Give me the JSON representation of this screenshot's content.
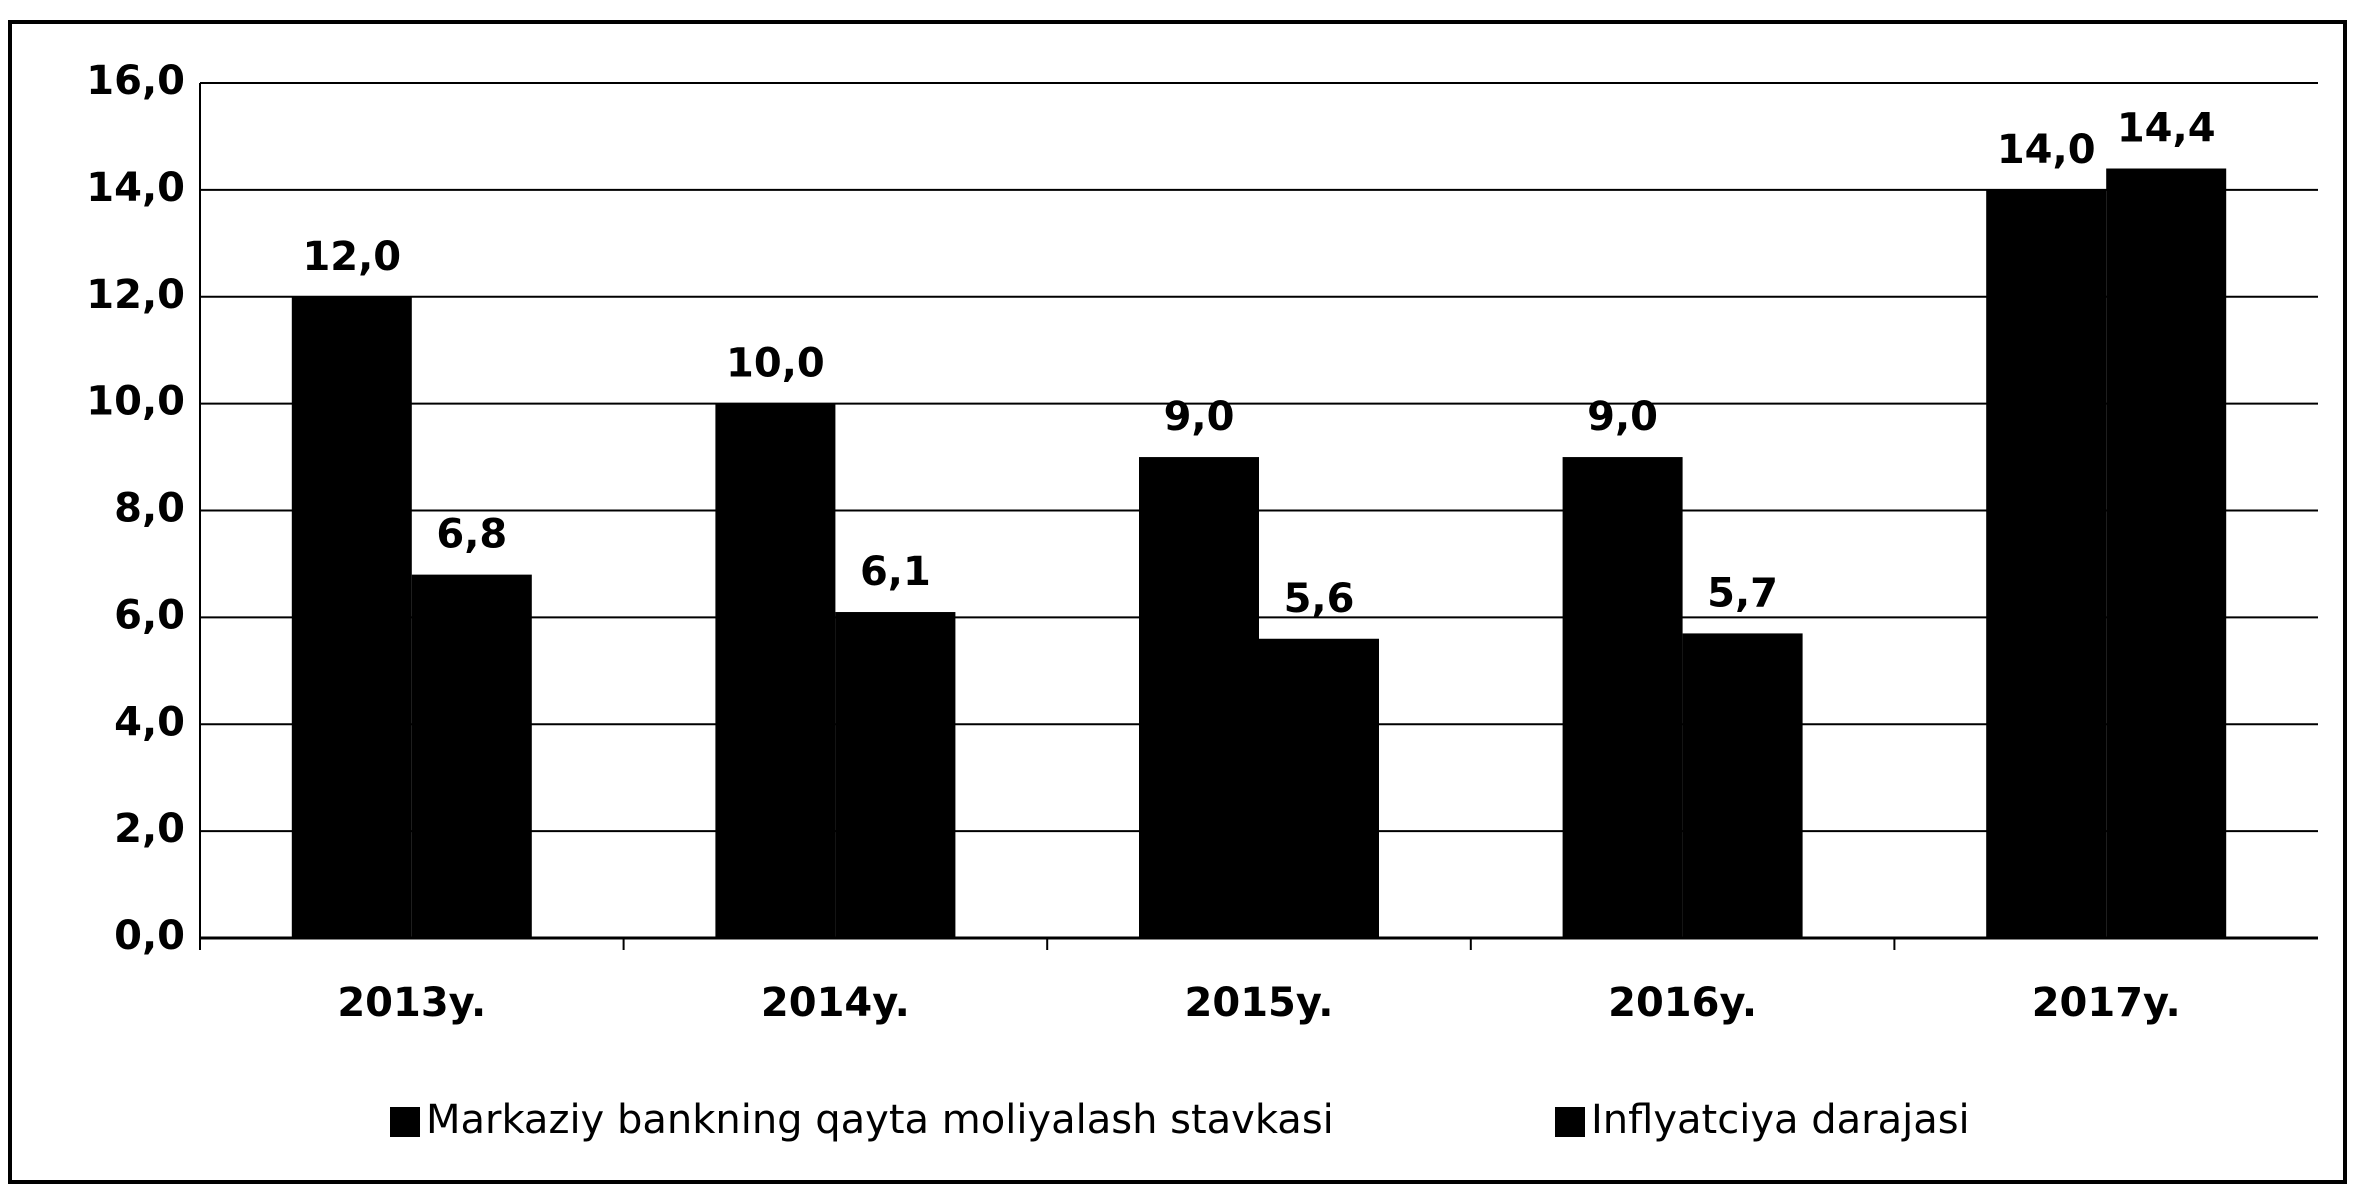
{
  "chart_data": {
    "type": "bar",
    "categories": [
      "2013y.",
      "2014y.",
      "2015y.",
      "2016y.",
      "2017y."
    ],
    "series": [
      {
        "name": "Markaziy bankning qayta moliyalash stavkasi",
        "color": "#000000",
        "values": [
          12.0,
          10.0,
          9.0,
          9.0,
          14.0
        ],
        "value_labels": [
          "12,0",
          "10,0",
          "9,0",
          "9,0",
          "14,0"
        ]
      },
      {
        "name": "Inflyatciya darajasi",
        "color": "#000000",
        "values": [
          6.8,
          6.1,
          5.6,
          5.7,
          14.4
        ],
        "value_labels": [
          "6,8",
          "6,1",
          "5,6",
          "5,7",
          "14,4"
        ]
      }
    ],
    "ylim": [
      0,
      16
    ],
    "yticks": [
      {
        "value": 0,
        "label": "0,0"
      },
      {
        "value": 2,
        "label": "2,0"
      },
      {
        "value": 4,
        "label": "4,0"
      },
      {
        "value": 6,
        "label": "6,0"
      },
      {
        "value": 8,
        "label": "8,0"
      },
      {
        "value": 10,
        "label": "10,0"
      },
      {
        "value": 12,
        "label": "12,0"
      },
      {
        "value": 14,
        "label": "14,0"
      },
      {
        "value": 16,
        "label": "16,0"
      }
    ],
    "grid": true,
    "legend": "bottom"
  }
}
